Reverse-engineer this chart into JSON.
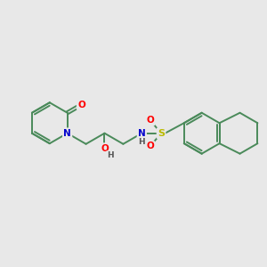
{
  "bg_color": "#e8e8e8",
  "bond_color": "#4a8a5a",
  "atom_colors": {
    "O": "#ff0000",
    "N": "#0000cc",
    "S": "#bbbb00",
    "C": "#4a8a5a",
    "H": "#555555"
  },
  "bond_width": 1.4,
  "figsize": [
    3.0,
    3.0
  ],
  "dpi": 100
}
